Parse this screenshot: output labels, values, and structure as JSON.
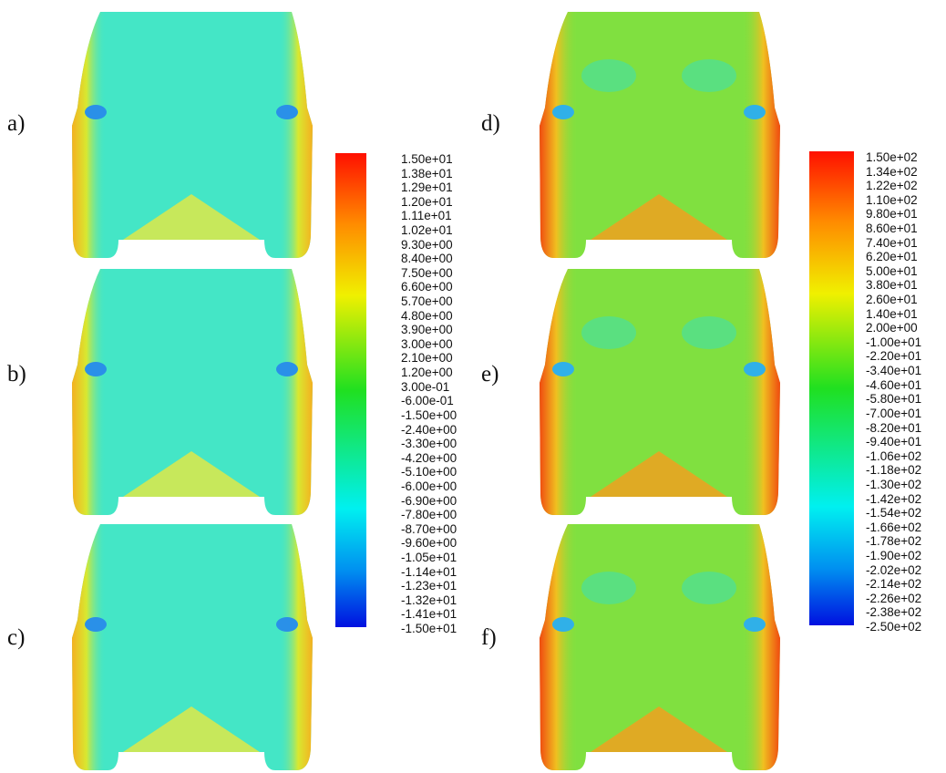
{
  "panels": [
    {
      "label": "a)"
    },
    {
      "label": "b)"
    },
    {
      "label": "c)"
    },
    {
      "label": "d)"
    },
    {
      "label": "e)"
    },
    {
      "label": "f)"
    }
  ],
  "colorbars": [
    {
      "labels": [
        "1.50e+01",
        "1.38e+01",
        "1.29e+01",
        "1.20e+01",
        "1.11e+01",
        "1.02e+01",
        "9.30e+00",
        "8.40e+00",
        "7.50e+00",
        "6.60e+00",
        "5.70e+00",
        "4.80e+00",
        "3.90e+00",
        "3.00e+00",
        "2.10e+00",
        "1.20e+00",
        "3.00e-01",
        "-6.00e-01",
        "-1.50e+00",
        "-2.40e+00",
        "-3.30e+00",
        "-4.20e+00",
        "-5.10e+00",
        "-6.00e+00",
        "-6.90e+00",
        "-7.80e+00",
        "-8.70e+00",
        "-9.60e+00",
        "-1.05e+01",
        "-1.14e+01",
        "-1.23e+01",
        "-1.32e+01",
        "-1.41e+01",
        "-1.50e+01"
      ]
    },
    {
      "labels": [
        "1.50e+02",
        "1.34e+02",
        "1.22e+02",
        "1.10e+02",
        "9.80e+01",
        "8.60e+01",
        "7.40e+01",
        "6.20e+01",
        "5.00e+01",
        "3.80e+01",
        "2.60e+01",
        "1.40e+01",
        "2.00e+00",
        "-1.00e+01",
        "-2.20e+01",
        "-3.40e+01",
        "-4.60e+01",
        "-5.80e+01",
        "-7.00e+01",
        "-8.20e+01",
        "-9.40e+01",
        "-1.06e+02",
        "-1.18e+02",
        "-1.30e+02",
        "-1.42e+02",
        "-1.54e+02",
        "-1.66e+02",
        "-1.78e+02",
        "-1.90e+02",
        "-2.02e+02",
        "-2.14e+02",
        "-2.26e+02",
        "-2.38e+02",
        "-2.50e+02"
      ]
    }
  ]
}
